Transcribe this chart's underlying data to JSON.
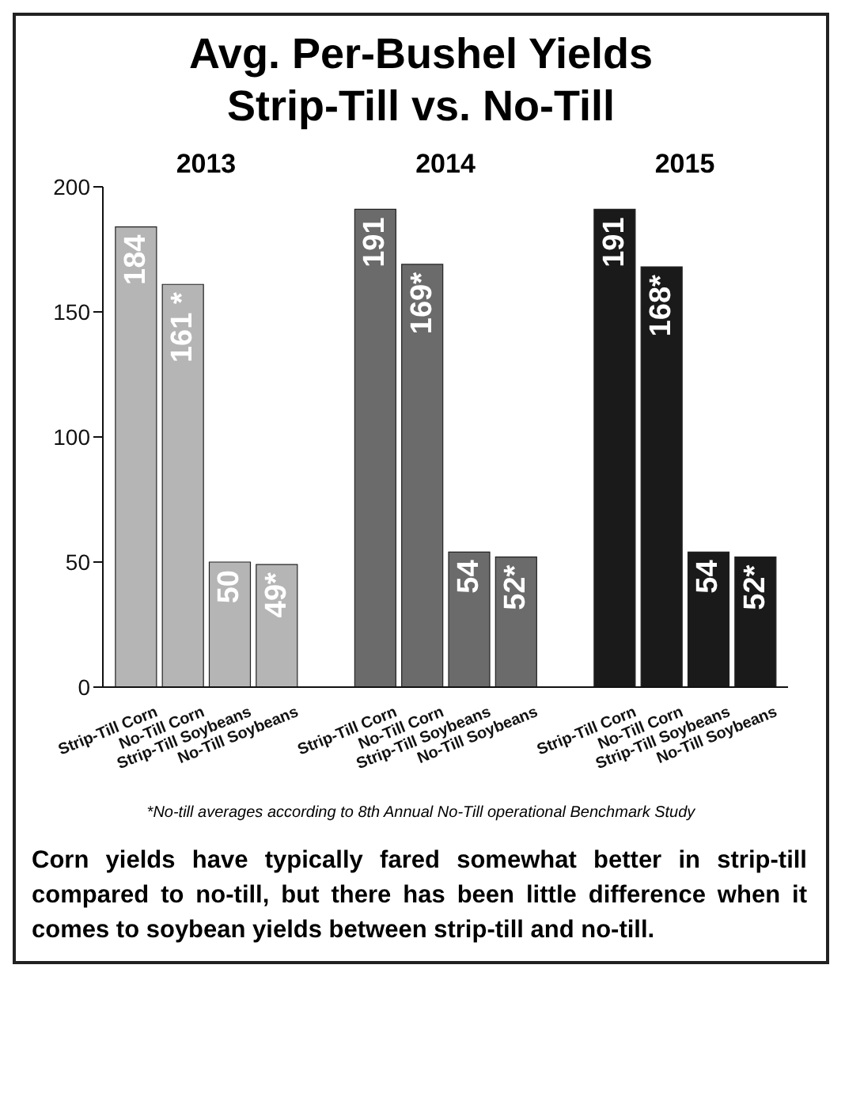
{
  "chart_data": {
    "type": "bar",
    "title": "Avg. Per-Bushel Yields",
    "subtitle": "Strip-Till vs. No-Till",
    "categories": [
      "Strip-Till Corn",
      "No-Till Corn",
      "Strip-Till Soybeans",
      "No-Till Soybeans",
      "Strip-Till Corn",
      "No-Till Corn",
      "Strip-Till Soybeans",
      "No-Till Soybeans",
      "Strip-Till Corn",
      "No-Till Corn",
      "Strip-Till Soybeans",
      "No-Till Soybeans"
    ],
    "stacked": true,
    "series": [
      {
        "name": "2013",
        "color": "#b5b5b5",
        "values": [
          184,
          161,
          50,
          49,
          null,
          null,
          null,
          null,
          null,
          null,
          null,
          null
        ],
        "value_labels": [
          "184",
          "161 *",
          "50",
          "49*",
          null,
          null,
          null,
          null,
          null,
          null,
          null,
          null
        ]
      },
      {
        "name": "2014",
        "color": "#6b6b6b",
        "values": [
          null,
          null,
          null,
          null,
          191,
          169,
          54,
          52,
          null,
          null,
          null,
          null
        ],
        "value_labels": [
          null,
          null,
          null,
          null,
          "191",
          "169*",
          "54",
          "52*",
          null,
          null,
          null,
          null
        ]
      },
      {
        "name": "2015",
        "color": "#1a1a1a",
        "values": [
          null,
          null,
          null,
          null,
          null,
          null,
          null,
          null,
          191,
          168,
          54,
          52
        ],
        "value_labels": [
          null,
          null,
          null,
          null,
          null,
          null,
          null,
          null,
          "191",
          "168*",
          "54",
          "52*"
        ]
      }
    ],
    "ylim": [
      0,
      200
    ],
    "yticks": [
      0,
      50,
      100,
      150,
      200
    ],
    "annotations": [
      "*No-till averages according to 8th Annual No-Till operational Benchmark Study",
      "Corn yields have typically fared somewhat better in strip-till compared to no-till, but there has been little difference when it comes to soybean yields between strip-till and no-till."
    ]
  }
}
